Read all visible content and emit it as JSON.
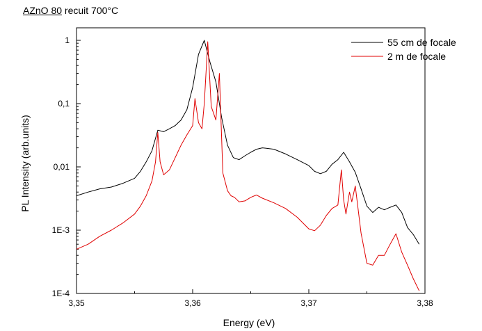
{
  "header": {
    "sample_label": "AZnO 80",
    "annealing_label": "recuit 700°C"
  },
  "chart_data": {
    "type": "line",
    "title": "",
    "xlabel": "Energy (eV)",
    "ylabel": "PL Intensity (arb.units)",
    "xlim": [
      3.35,
      3.38
    ],
    "ylim": [
      0.0001,
      1
    ],
    "yscale": "log",
    "grid": false,
    "legend_position": "top-right",
    "x_tick_labels": [
      "3,35",
      "3,36",
      "3,37",
      "3,38"
    ],
    "y_tick_labels": [
      "1E-4",
      "1E-3",
      "0,01",
      "0,1",
      "1"
    ],
    "series": [
      {
        "name": "55 cm de focale",
        "color": "#000000",
        "x": [
          3.35,
          3.351,
          3.352,
          3.353,
          3.354,
          3.355,
          3.3555,
          3.356,
          3.3565,
          3.357,
          3.3575,
          3.358,
          3.3585,
          3.359,
          3.3595,
          3.36,
          3.3605,
          3.361,
          3.3615,
          3.362,
          3.3625,
          3.363,
          3.3635,
          3.364,
          3.3645,
          3.365,
          3.3655,
          3.366,
          3.367,
          3.368,
          3.369,
          3.37,
          3.3705,
          3.371,
          3.3715,
          3.372,
          3.3725,
          3.373,
          3.3735,
          3.374,
          3.3745,
          3.375,
          3.3755,
          3.376,
          3.3765,
          3.377,
          3.3775,
          3.378,
          3.3785,
          3.379,
          3.3795
        ],
        "y": [
          0.0035,
          0.004,
          0.0045,
          0.0048,
          0.0055,
          0.0066,
          0.0085,
          0.012,
          0.018,
          0.038,
          0.036,
          0.04,
          0.045,
          0.055,
          0.08,
          0.18,
          0.6,
          1.0,
          0.45,
          0.22,
          0.06,
          0.022,
          0.014,
          0.013,
          0.015,
          0.017,
          0.019,
          0.02,
          0.019,
          0.016,
          0.013,
          0.0105,
          0.0085,
          0.0078,
          0.0085,
          0.011,
          0.013,
          0.017,
          0.012,
          0.0082,
          0.0045,
          0.0024,
          0.0019,
          0.0023,
          0.0021,
          0.0023,
          0.0025,
          0.0019,
          0.0011,
          0.00085,
          0.0006
        ]
      },
      {
        "name": "2 m de focale",
        "color": "#e00000",
        "x": [
          3.35,
          3.351,
          3.352,
          3.353,
          3.354,
          3.355,
          3.3555,
          3.356,
          3.3565,
          3.3568,
          3.357,
          3.3572,
          3.3575,
          3.358,
          3.3585,
          3.359,
          3.3595,
          3.36,
          3.3602,
          3.3605,
          3.3608,
          3.361,
          3.3613,
          3.3616,
          3.362,
          3.3623,
          3.3626,
          3.363,
          3.3633,
          3.3636,
          3.364,
          3.3645,
          3.365,
          3.3655,
          3.366,
          3.367,
          3.368,
          3.369,
          3.37,
          3.3705,
          3.371,
          3.3715,
          3.372,
          3.3725,
          3.3728,
          3.373,
          3.3732,
          3.3735,
          3.3737,
          3.374,
          3.3745,
          3.375,
          3.3755,
          3.376,
          3.3765,
          3.377,
          3.3775,
          3.378,
          3.3785,
          3.379,
          3.3795
        ],
        "y": [
          0.0005,
          0.0006,
          0.0008,
          0.001,
          0.0013,
          0.0018,
          0.0024,
          0.0035,
          0.006,
          0.012,
          0.035,
          0.012,
          0.0075,
          0.009,
          0.014,
          0.022,
          0.032,
          0.045,
          0.12,
          0.05,
          0.04,
          0.1,
          0.95,
          0.09,
          0.055,
          0.3,
          0.008,
          0.0042,
          0.0035,
          0.0033,
          0.0028,
          0.0029,
          0.0033,
          0.0036,
          0.0032,
          0.0027,
          0.0022,
          0.0016,
          0.00105,
          0.00098,
          0.0012,
          0.0017,
          0.0022,
          0.0025,
          0.009,
          0.003,
          0.0018,
          0.004,
          0.0028,
          0.005,
          0.0009,
          0.0003,
          0.00028,
          0.0004,
          0.0004,
          0.0006,
          0.00088,
          0.00045,
          0.00028,
          0.00017,
          0.00011
        ]
      }
    ]
  }
}
